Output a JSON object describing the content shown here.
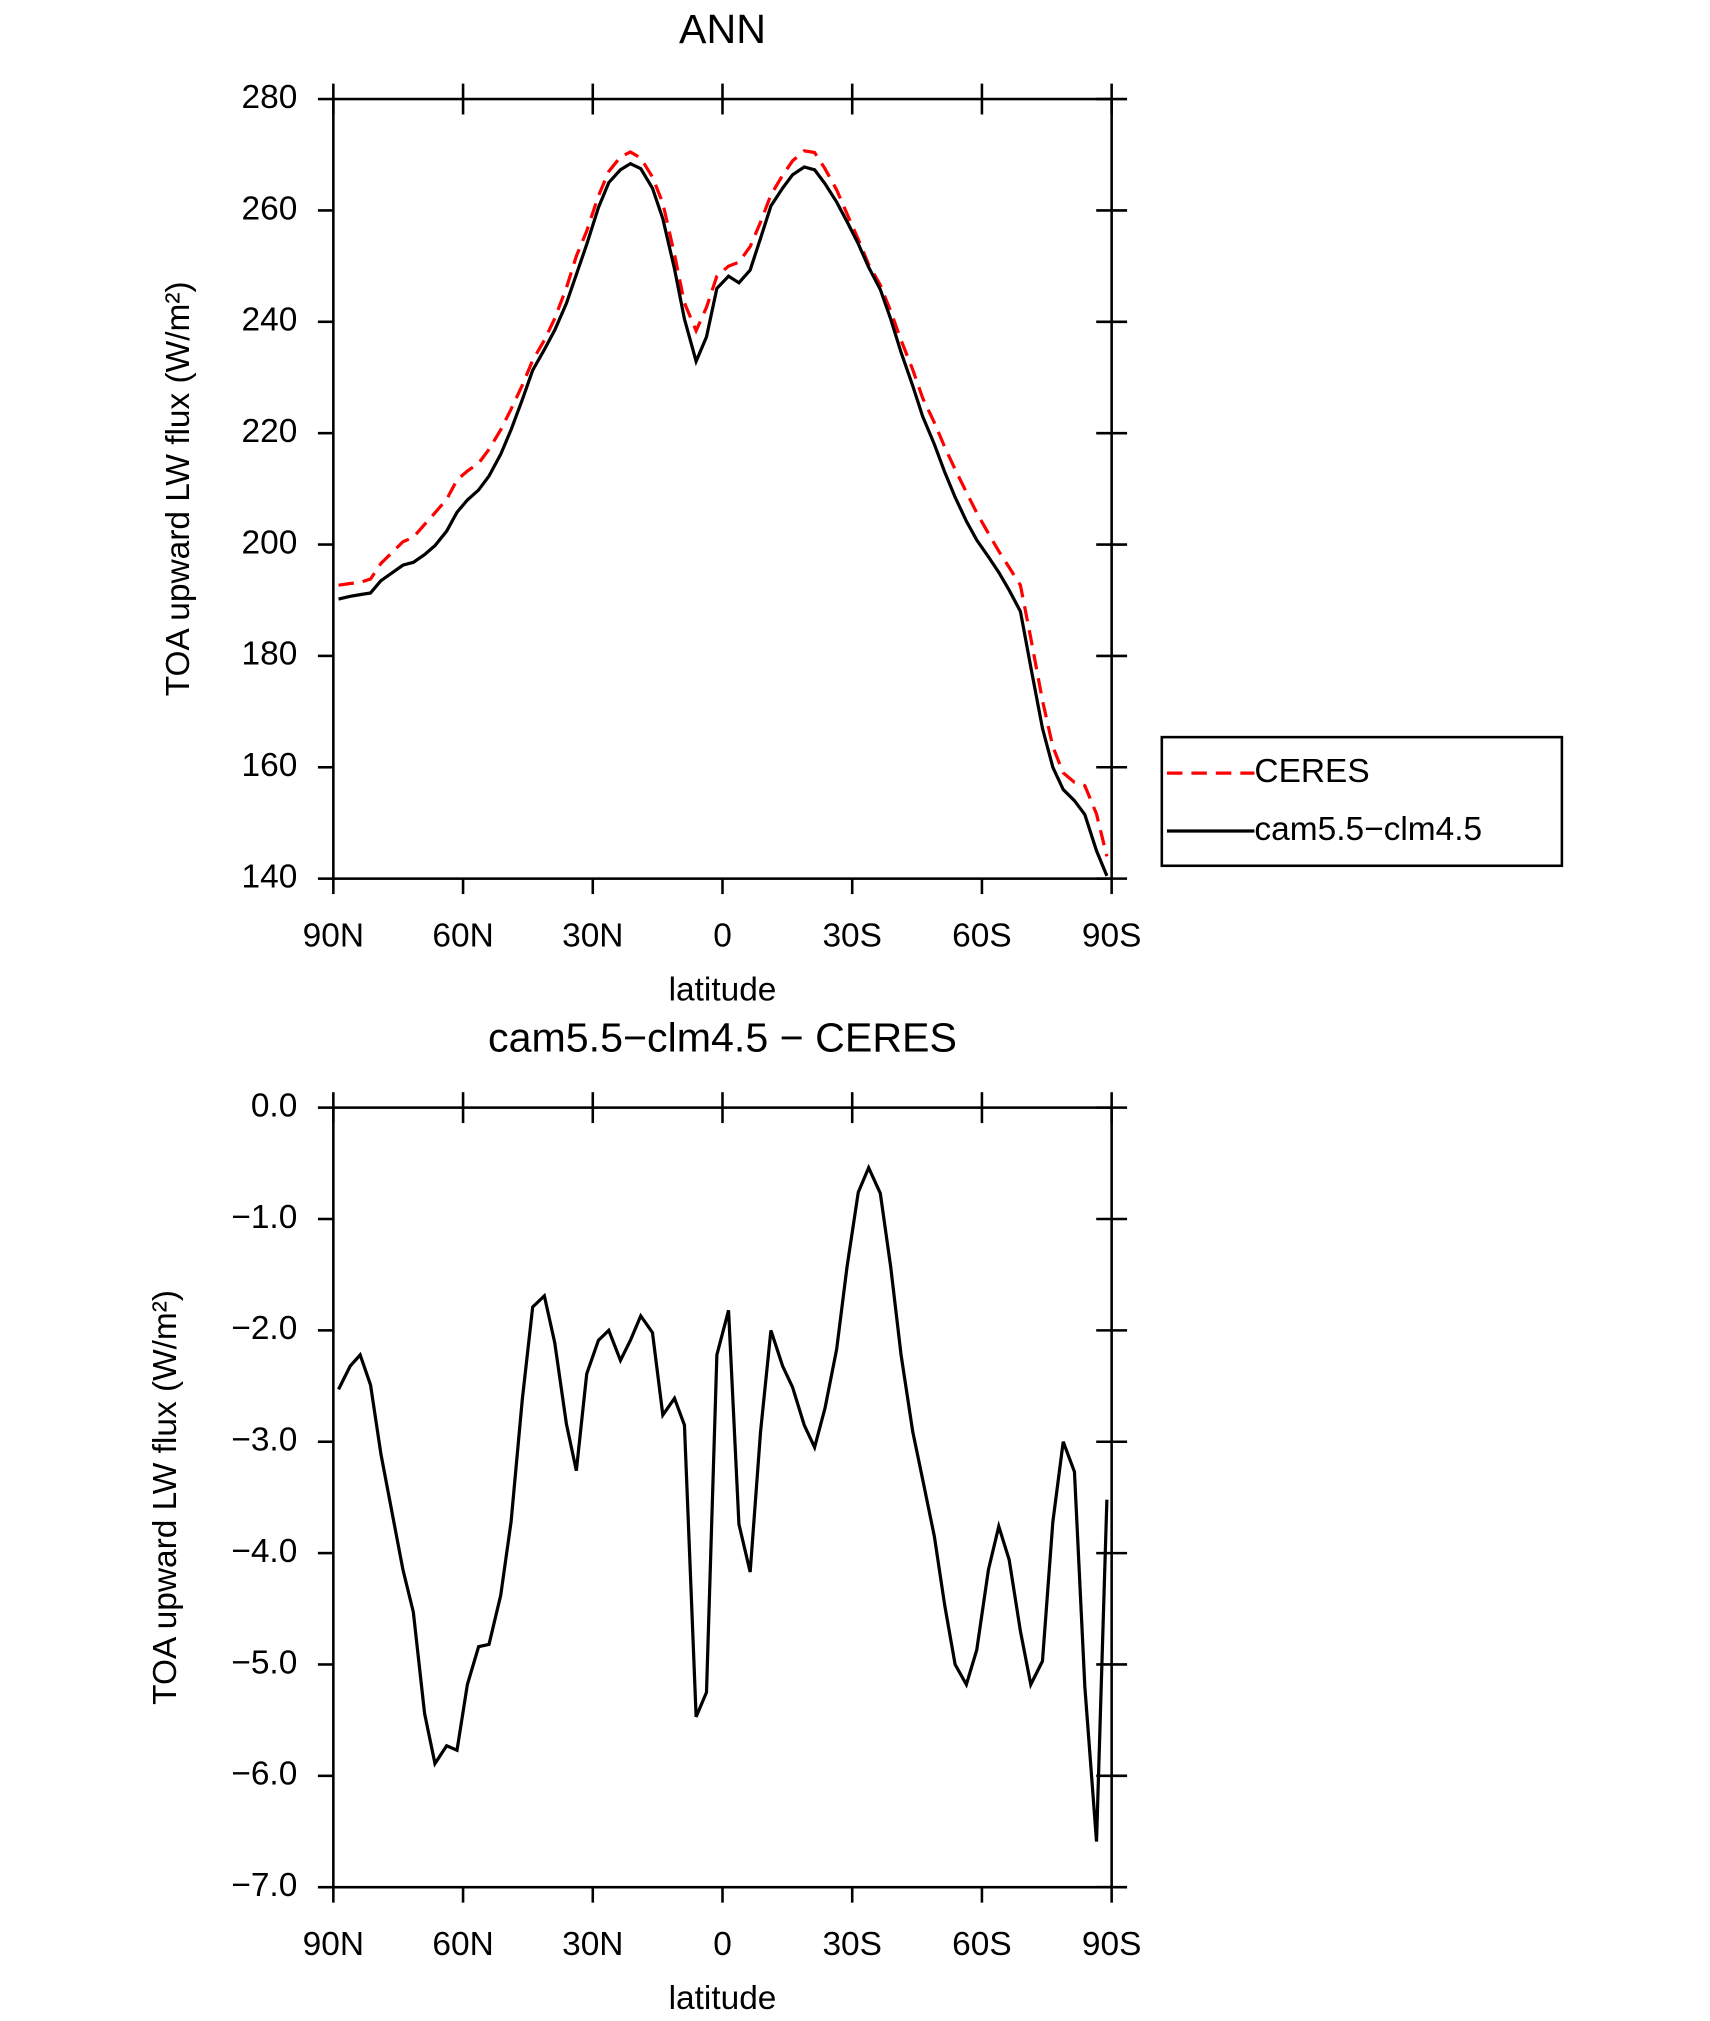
{
  "chart_data": [
    {
      "type": "line",
      "title": "ANN",
      "x_label": "latitude",
      "y_label": "TOA upward LW flux (W/m²)",
      "x": [
        88.8,
        86.1,
        83.8,
        81.4,
        79.0,
        73.9,
        71.5,
        68.9,
        66.5,
        63.8,
        61.4,
        59.0,
        56.4,
        54.0,
        51.3,
        48.9,
        46.3,
        43.9,
        41.2,
        38.8,
        36.1,
        33.8,
        31.4,
        28.7,
        26.3,
        23.6,
        21.3,
        18.9,
        16.2,
        13.8,
        11.1,
        8.8,
        6.1,
        3.7,
        1.3,
        -1.4,
        -3.8,
        -6.4,
        -8.8,
        -11.2,
        -13.9,
        -16.2,
        -18.9,
        -21.3,
        -23.7,
        -26.4,
        -28.8,
        -31.4,
        -33.8,
        -36.5,
        -38.9,
        -41.3,
        -44.0,
        -46.3,
        -49.0,
        -51.4,
        -53.8,
        -56.4,
        -58.8,
        -61.5,
        -63.9,
        -66.3,
        -68.9,
        -71.3,
        -74.0,
        -76.4,
        -78.8,
        -81.4,
        -83.8,
        -86.5,
        -88.9
      ],
      "series": [
        {
          "name": "CERES",
          "color": "#ff0000",
          "line_style": "dashed",
          "values": [
            192.7,
            193.0,
            193.2,
            193.8,
            196.6,
            200.5,
            201.3,
            203.6,
            205.7,
            208.1,
            211.6,
            213.2,
            214.6,
            217.1,
            220.6,
            224.3,
            228.6,
            233.1,
            236.7,
            240.6,
            246.1,
            251.8,
            256.3,
            262.6,
            267.0,
            269.6,
            270.5,
            269.4,
            266.0,
            261.3,
            252.1,
            243.4,
            238.4,
            242.6,
            248.2,
            250.0,
            250.7,
            253.5,
            257.9,
            262.8,
            266.3,
            268.9,
            270.7,
            270.4,
            267.5,
            263.7,
            259.4,
            254.8,
            250.3,
            246.6,
            241.9,
            236.7,
            231.4,
            226.3,
            221.9,
            217.5,
            213.5,
            209.4,
            205.7,
            202.0,
            198.8,
            195.9,
            192.7,
            183.2,
            172.0,
            163.7,
            159.0,
            157.3,
            156.7,
            151.6,
            144.0
          ]
        },
        {
          "name": "cam5.5−clm4.5",
          "color": "#000000",
          "line_style": "solid",
          "values": [
            190.2,
            190.7,
            191.0,
            191.3,
            193.5,
            196.3,
            196.8,
            198.2,
            199.8,
            202.4,
            205.8,
            208.0,
            209.8,
            212.3,
            216.2,
            220.6,
            226.0,
            231.3,
            235.0,
            238.5,
            243.3,
            248.5,
            253.9,
            260.5,
            265.0,
            267.3,
            268.4,
            267.5,
            264.0,
            258.5,
            249.5,
            240.5,
            232.9,
            237.3,
            246.0,
            248.2,
            247.0,
            249.3,
            255.0,
            260.8,
            264.0,
            266.4,
            267.8,
            267.3,
            264.8,
            261.5,
            258.0,
            254.0,
            249.8,
            245.8,
            240.5,
            234.5,
            228.5,
            223.0,
            218.0,
            213.0,
            208.5,
            204.2,
            200.8,
            197.8,
            195.0,
            191.8,
            188.0,
            178.0,
            167.0,
            160.0,
            156.0,
            154.0,
            151.5,
            145.0,
            140.5
          ]
        }
      ],
      "xlim": [
        90,
        -90
      ],
      "xticks": [
        {
          "value": 90,
          "label": "90N"
        },
        {
          "value": 60,
          "label": "60N"
        },
        {
          "value": 30,
          "label": "30N"
        },
        0,
        {
          "value": -30,
          "label": "30S"
        },
        {
          "value": -60,
          "label": "60S"
        },
        {
          "value": -90,
          "label": "90S"
        }
      ],
      "ylim": [
        140,
        280
      ],
      "yticks": [
        140,
        160,
        180,
        200,
        220,
        240,
        260,
        280
      ],
      "legend": "outside-right"
    },
    {
      "type": "line",
      "title": "cam5.5−clm4.5 − CERES",
      "x_label": "latitude",
      "y_label": "TOA upward LW flux (W/m²)",
      "x": [
        88.8,
        86.1,
        83.8,
        81.4,
        79.0,
        73.9,
        71.5,
        68.9,
        66.5,
        63.8,
        61.4,
        59.0,
        56.4,
        54.0,
        51.3,
        48.9,
        46.3,
        43.9,
        41.2,
        38.8,
        36.1,
        33.8,
        31.4,
        28.7,
        26.3,
        23.6,
        21.3,
        18.9,
        16.2,
        13.8,
        11.1,
        8.8,
        6.1,
        3.7,
        1.3,
        -1.4,
        -3.8,
        -6.4,
        -8.8,
        -11.2,
        -13.9,
        -16.2,
        -18.9,
        -21.3,
        -23.7,
        -26.4,
        -28.8,
        -31.4,
        -33.8,
        -36.5,
        -38.9,
        -41.3,
        -44.0,
        -46.3,
        -49.0,
        -51.4,
        -53.8,
        -56.4,
        -58.8,
        -61.5,
        -63.9,
        -66.3,
        -68.9,
        -71.3,
        -74.0,
        -76.4,
        -78.8,
        -81.4,
        -83.8,
        -86.5,
        -88.9
      ],
      "color": "#000000",
      "values": [
        -2.53,
        -2.32,
        -2.22,
        -2.49,
        -3.11,
        -4.15,
        -4.53,
        -5.44,
        -5.89,
        -5.73,
        -5.77,
        -5.18,
        -4.84,
        -4.82,
        -4.38,
        -3.72,
        -2.62,
        -1.79,
        -1.69,
        -2.11,
        -2.84,
        -3.26,
        -2.39,
        -2.09,
        -2.0,
        -2.27,
        -2.09,
        -1.87,
        -2.02,
        -2.76,
        -2.61,
        -2.85,
        -5.47,
        -5.25,
        -2.22,
        -1.82,
        -3.74,
        -4.17,
        -2.91,
        -2.0,
        -2.32,
        -2.51,
        -2.85,
        -3.05,
        -2.7,
        -2.17,
        -1.43,
        -0.76,
        -0.54,
        -0.77,
        -1.43,
        -2.22,
        -2.91,
        -3.34,
        -3.85,
        -4.47,
        -5.0,
        -5.18,
        -4.87,
        -4.15,
        -3.76,
        -4.06,
        -4.7,
        -5.18,
        -4.97,
        -3.72,
        -3.0,
        -3.27,
        -5.2,
        -6.59,
        -3.52
      ],
      "xlim": [
        90,
        -90
      ],
      "xticks": [
        {
          "value": 90,
          "label": "90N"
        },
        {
          "value": 60,
          "label": "60N"
        },
        {
          "value": 30,
          "label": "30N"
        },
        0,
        {
          "value": -30,
          "label": "30S"
        },
        {
          "value": -60,
          "label": "60S"
        },
        {
          "value": -90,
          "label": "90S"
        }
      ],
      "ylim": [
        -7,
        0
      ],
      "yticks": [
        {
          "value": -7,
          "label": "−7.0"
        },
        {
          "value": -6,
          "label": "−6.0"
        },
        {
          "value": -5,
          "label": "−5.0"
        },
        {
          "value": -4,
          "label": "−4.0"
        },
        {
          "value": -3,
          "label": "−3.0"
        },
        {
          "value": -2,
          "label": "−2.0"
        },
        {
          "value": -1,
          "label": "−1.0"
        },
        {
          "value": 0,
          "label": "0.0"
        }
      ]
    }
  ]
}
